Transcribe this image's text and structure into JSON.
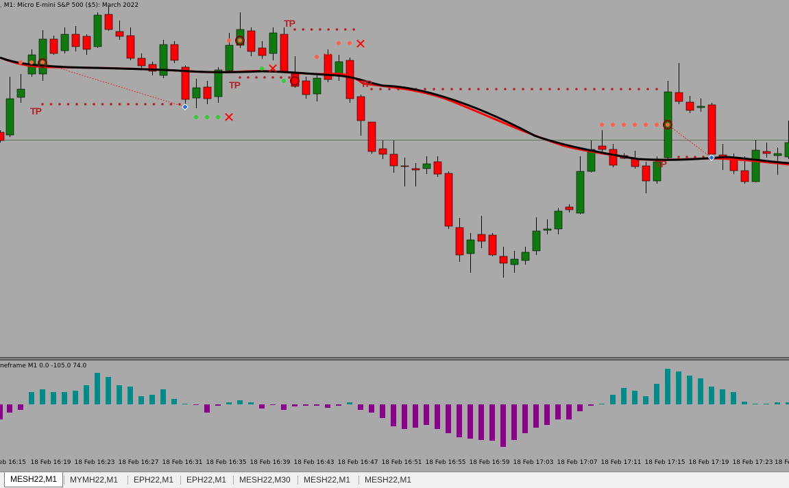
{
  "window": {
    "symbol_title": ", M1:  Micro E-mini S&P 500 ($5): March 2022",
    "indicator_title": "neframe M1 0.0 -105.0 74.0"
  },
  "time_axis": {
    "labels": [
      "eb 16:15",
      "18 Feb 16:19",
      "18 Feb 16:23",
      "18 Feb 16:27",
      "18 Feb 16:31",
      "18 Feb 16:35",
      "18 Feb 16:39",
      "18 Feb 16:43",
      "18 Feb 16:47",
      "18 Feb 16:51",
      "18 Feb 16:55",
      "18 Feb 16:59",
      "18 Feb 17:03",
      "18 Feb 17:07",
      "18 Feb 17:11",
      "18 Feb 17:15",
      "18 Feb 17:19",
      "18 Feb 17:23",
      "18 Feb"
    ]
  },
  "tabs": [
    {
      "label": "MESH22,M1",
      "active": true
    },
    {
      "label": "MYMH22,M1",
      "active": false
    },
    {
      "label": "EPH22,M1",
      "active": false
    },
    {
      "label": "EPH22,M1",
      "active": false
    },
    {
      "label": "MESH22,M30",
      "active": false
    },
    {
      "label": "MESH22,M1",
      "active": false
    },
    {
      "label": "MESH22,M1",
      "active": false
    }
  ],
  "annotations": {
    "tp_label": "TP",
    "tp_label_count": 6,
    "exit_marker": "✕",
    "exit_marker_count": 6
  },
  "colors": {
    "background": "#a9a9a9",
    "bull_candle": "#0f7a0f",
    "bear_candle": "#ff0000",
    "slow_ma": "#000000",
    "fast_ma": "#ff0000",
    "tp_line": "#b22222",
    "tp_label": "#b22222",
    "entry_dots_sell": "#ff6347",
    "entry_dots_buy": "#32cd32",
    "exit_marker": "#ff0000",
    "hist_positive": "#008b8b",
    "hist_negative": "#8b008b"
  }
}
